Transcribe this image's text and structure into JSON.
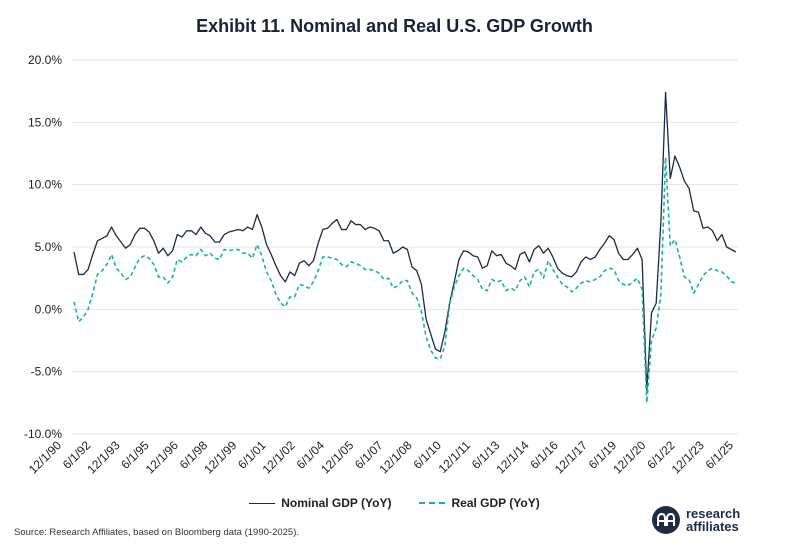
{
  "title": "Exhibit 11. Nominal and Real U.S. GDP Growth",
  "source": "Source: Research Affiliates, based on Bloomberg data (1990-2025).",
  "logo": {
    "line1": "research",
    "line2": "affiliates"
  },
  "colors": {
    "nominal": "#1f2a44",
    "real": "#17b3a0",
    "grid": "#e3e3e3"
  },
  "chart_data": {
    "type": "line",
    "title": "Exhibit 11. Nominal and Real U.S. GDP Growth",
    "y_unit": "percent",
    "ylim": [
      -10,
      20
    ],
    "yticks": [
      -10,
      -5,
      0,
      5,
      10,
      15,
      20
    ],
    "ytick_labels": [
      "-10.0%",
      "-5.0%",
      "0.0%",
      "5.0%",
      "10.0%",
      "15.0%",
      "20.0%"
    ],
    "x_tick_labels": [
      "12/1/90",
      "6/1/92",
      "12/1/93",
      "6/1/95",
      "12/1/96",
      "6/1/98",
      "12/1/99",
      "6/1/01",
      "12/1/02",
      "6/1/04",
      "12/1/05",
      "6/1/07",
      "12/1/08",
      "6/1/10",
      "12/1/11",
      "6/1/13",
      "12/1/14",
      "6/1/16",
      "12/1/17",
      "6/1/19",
      "12/1/20",
      "6/1/22",
      "12/1/23",
      "6/1/25"
    ],
    "x_first_label": "12/1/90",
    "x_last_label": "6/1/25",
    "grid": true,
    "legend_position": "bottom",
    "series": [
      {
        "name": "Nominal GDP (YoY)",
        "style": "solid",
        "values": [
          4.6,
          2.8,
          2.8,
          3.2,
          4.4,
          5.5,
          5.7,
          5.9,
          6.6,
          5.9,
          5.4,
          4.9,
          5.2,
          6.0,
          6.5,
          6.5,
          6.2,
          5.5,
          4.5,
          4.9,
          4.3,
          4.7,
          6.0,
          5.8,
          6.3,
          6.3,
          6.0,
          6.6,
          6.1,
          5.9,
          5.4,
          5.4,
          6.0,
          6.2,
          6.3,
          6.4,
          6.3,
          6.6,
          6.4,
          7.6,
          6.6,
          5.2,
          4.4,
          3.5,
          2.7,
          2.2,
          3.0,
          2.7,
          3.7,
          3.9,
          3.5,
          3.9,
          5.3,
          6.4,
          6.5,
          6.9,
          7.2,
          6.4,
          6.4,
          7.1,
          6.8,
          6.8,
          6.4,
          6.6,
          6.5,
          6.3,
          5.5,
          5.5,
          4.5,
          4.7,
          5.0,
          4.8,
          3.4,
          3.1,
          2.0,
          -0.8,
          -2.0,
          -3.2,
          -3.4,
          -1.8,
          0.5,
          2.2,
          4.0,
          4.7,
          4.6,
          4.3,
          4.2,
          3.3,
          3.5,
          4.7,
          4.3,
          4.4,
          3.7,
          3.5,
          3.2,
          4.4,
          4.6,
          3.8,
          4.8,
          5.1,
          4.5,
          4.9,
          4.2,
          3.3,
          2.9,
          2.7,
          2.6,
          3.0,
          3.8,
          4.2,
          4.0,
          4.2,
          4.8,
          5.3,
          5.9,
          5.6,
          4.5,
          4.0,
          4.0,
          4.4,
          4.9,
          4.0,
          -6.5,
          -0.3,
          0.5,
          7.0,
          17.4,
          10.5,
          12.3,
          11.4,
          10.3,
          9.7,
          7.9,
          7.8,
          6.5,
          6.6,
          6.3,
          5.5,
          6.0,
          5.0,
          4.8,
          4.6
        ]
      },
      {
        "name": "Real GDP (YoY)",
        "style": "dashed",
        "values": [
          0.6,
          -1.0,
          -0.6,
          0.0,
          1.3,
          2.8,
          3.1,
          3.6,
          4.4,
          3.3,
          2.9,
          2.4,
          2.6,
          3.4,
          4.1,
          4.3,
          4.1,
          3.6,
          2.6,
          2.6,
          2.1,
          2.6,
          4.0,
          3.8,
          4.2,
          4.4,
          4.3,
          4.8,
          4.3,
          4.5,
          4.1,
          4.0,
          4.8,
          4.7,
          4.8,
          4.8,
          4.5,
          4.5,
          4.1,
          5.2,
          4.3,
          3.0,
          2.3,
          1.2,
          0.5,
          0.2,
          1.0,
          1.0,
          2.0,
          1.9,
          1.7,
          2.2,
          3.1,
          4.2,
          4.2,
          4.1,
          4.0,
          3.6,
          3.4,
          3.8,
          3.7,
          3.5,
          3.2,
          3.2,
          3.1,
          2.9,
          2.4,
          2.5,
          1.7,
          1.9,
          2.3,
          2.3,
          1.3,
          0.9,
          -0.2,
          -2.2,
          -3.3,
          -3.9,
          -4.0,
          -2.9,
          0.4,
          1.8,
          2.7,
          3.3,
          3.1,
          2.7,
          2.4,
          1.6,
          1.5,
          2.4,
          2.2,
          2.3,
          1.5,
          1.7,
          1.5,
          2.3,
          2.6,
          1.8,
          3.0,
          3.2,
          2.5,
          3.9,
          3.2,
          2.6,
          2.0,
          1.8,
          1.4,
          1.7,
          2.1,
          2.3,
          2.2,
          2.4,
          2.6,
          3.1,
          3.3,
          3.2,
          2.3,
          2.0,
          1.9,
          2.2,
          2.5,
          1.6,
          -7.5,
          -2.5,
          -1.5,
          1.2,
          12.2,
          5.1,
          5.6,
          4.2,
          2.6,
          2.4,
          1.3,
          2.0,
          2.7,
          3.1,
          3.3,
          3.1,
          3.0,
          2.7,
          2.2,
          2.1
        ]
      }
    ]
  }
}
